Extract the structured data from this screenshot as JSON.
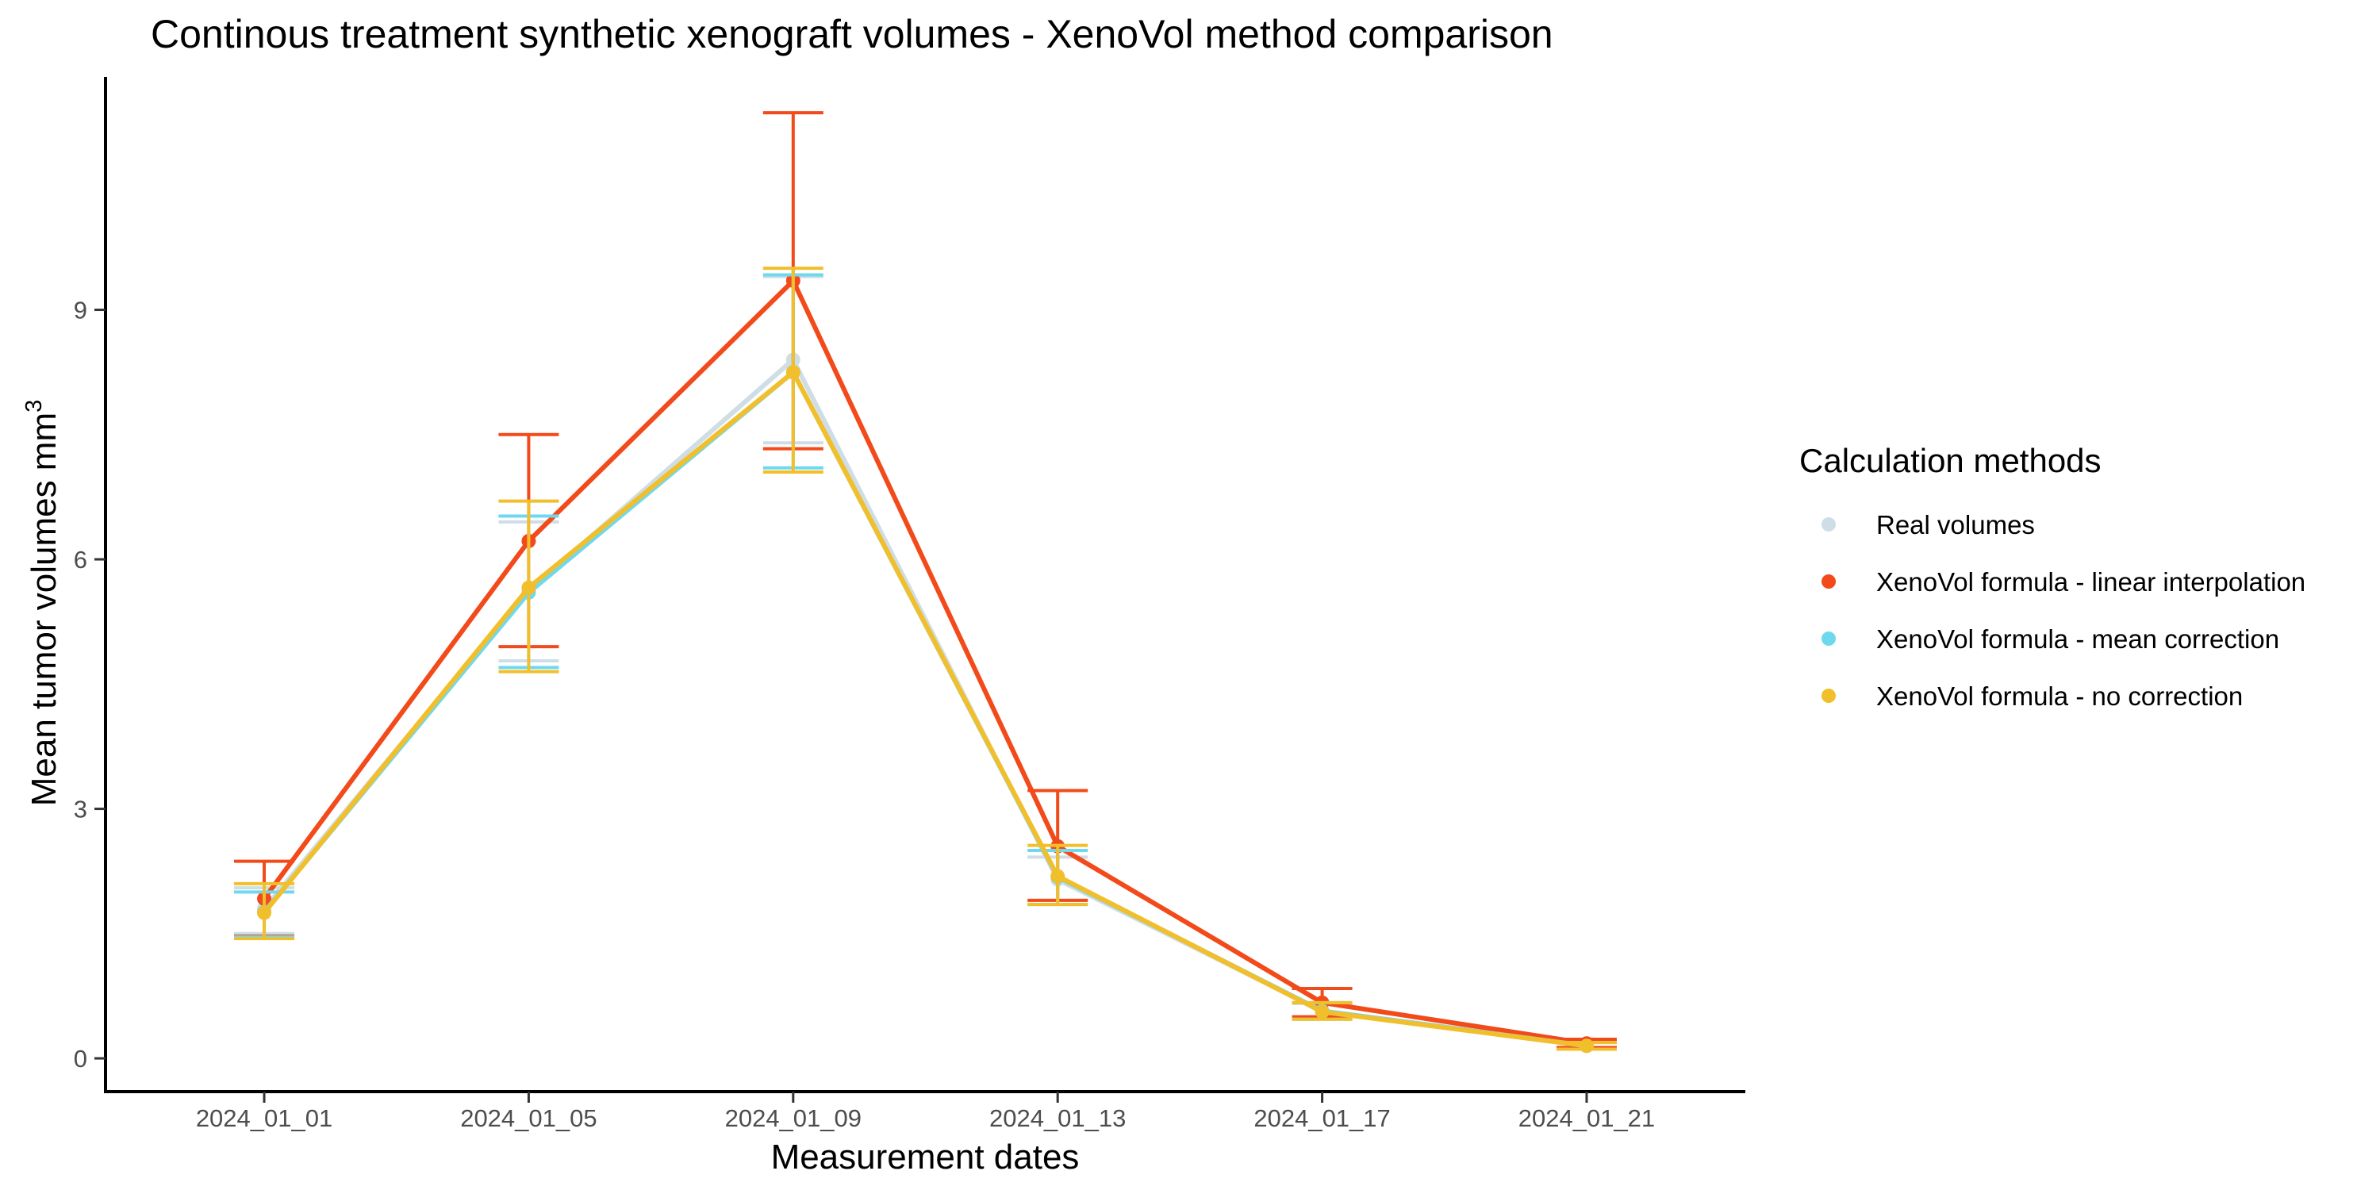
{
  "chart_data": {
    "type": "line",
    "title": "Continous treatment synthetic xenograft volumes - XenoVol method comparison",
    "xlabel": "Measurement dates",
    "ylabel": "Mean tumor volumes mm",
    "ylabel_superscript": "3",
    "categories": [
      "2024_01_01",
      "2024_01_05",
      "2024_01_09",
      "2024_01_13",
      "2024_01_17",
      "2024_01_21"
    ],
    "ylim": [
      -0.4,
      11.8
    ],
    "yticks": [
      0,
      3,
      6,
      9
    ],
    "grid": false,
    "legend": {
      "title": "Calculation methods",
      "position": "right"
    },
    "series": [
      {
        "name": "Real volumes",
        "color": "#cfdde6",
        "values": [
          1.8,
          5.62,
          8.4,
          2.15,
          0.57,
          0.16
        ],
        "lower": [
          1.5,
          4.78,
          7.4,
          1.9,
          0.48,
          0.12
        ],
        "upper": [
          2.05,
          6.45,
          9.4,
          2.42,
          0.66,
          0.2
        ]
      },
      {
        "name": "XenoVol formula - linear interpolation",
        "color": "#f24a1a",
        "values": [
          1.92,
          6.22,
          9.35,
          2.55,
          0.67,
          0.18
        ],
        "lower": [
          1.47,
          4.95,
          7.33,
          1.9,
          0.5,
          0.13
        ],
        "upper": [
          2.37,
          7.5,
          11.37,
          3.22,
          0.84,
          0.23
        ]
      },
      {
        "name": "XenoVol formula - mean correction",
        "color": "#6ed9ee",
        "values": [
          1.76,
          5.6,
          8.25,
          2.18,
          0.57,
          0.15
        ],
        "lower": [
          1.46,
          4.7,
          7.1,
          1.85,
          0.47,
          0.11
        ],
        "upper": [
          2.0,
          6.52,
          9.42,
          2.5,
          0.67,
          0.19
        ]
      },
      {
        "name": "XenoVol formula - no correction",
        "color": "#f2bf2c",
        "values": [
          1.75,
          5.66,
          8.25,
          2.19,
          0.56,
          0.15
        ],
        "lower": [
          1.44,
          4.65,
          7.05,
          1.85,
          0.47,
          0.11
        ],
        "upper": [
          2.1,
          6.7,
          9.5,
          2.56,
          0.67,
          0.19
        ]
      }
    ]
  }
}
